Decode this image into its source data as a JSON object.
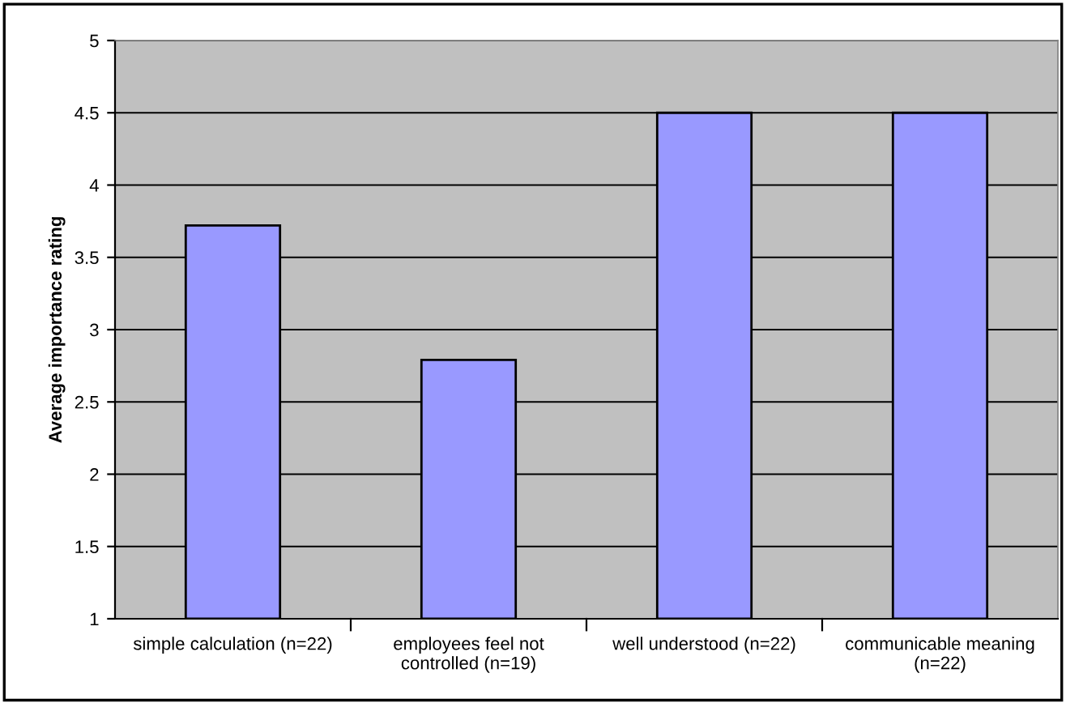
{
  "chart_data": {
    "type": "bar",
    "ylabel": "Average importance rating",
    "categories": [
      "simple calculation (n=22)",
      "employees feel not\ncontrolled (n=19)",
      "well understood (n=22)",
      "communicable meaning\n(n=22)"
    ],
    "values": [
      3.72,
      2.79,
      4.5,
      4.5
    ],
    "color": "#9999ff",
    "ylim": [
      1,
      5
    ],
    "yticks": [
      1,
      1.5,
      2,
      2.5,
      3,
      3.5,
      4,
      4.5,
      5
    ],
    "grid": "y"
  }
}
